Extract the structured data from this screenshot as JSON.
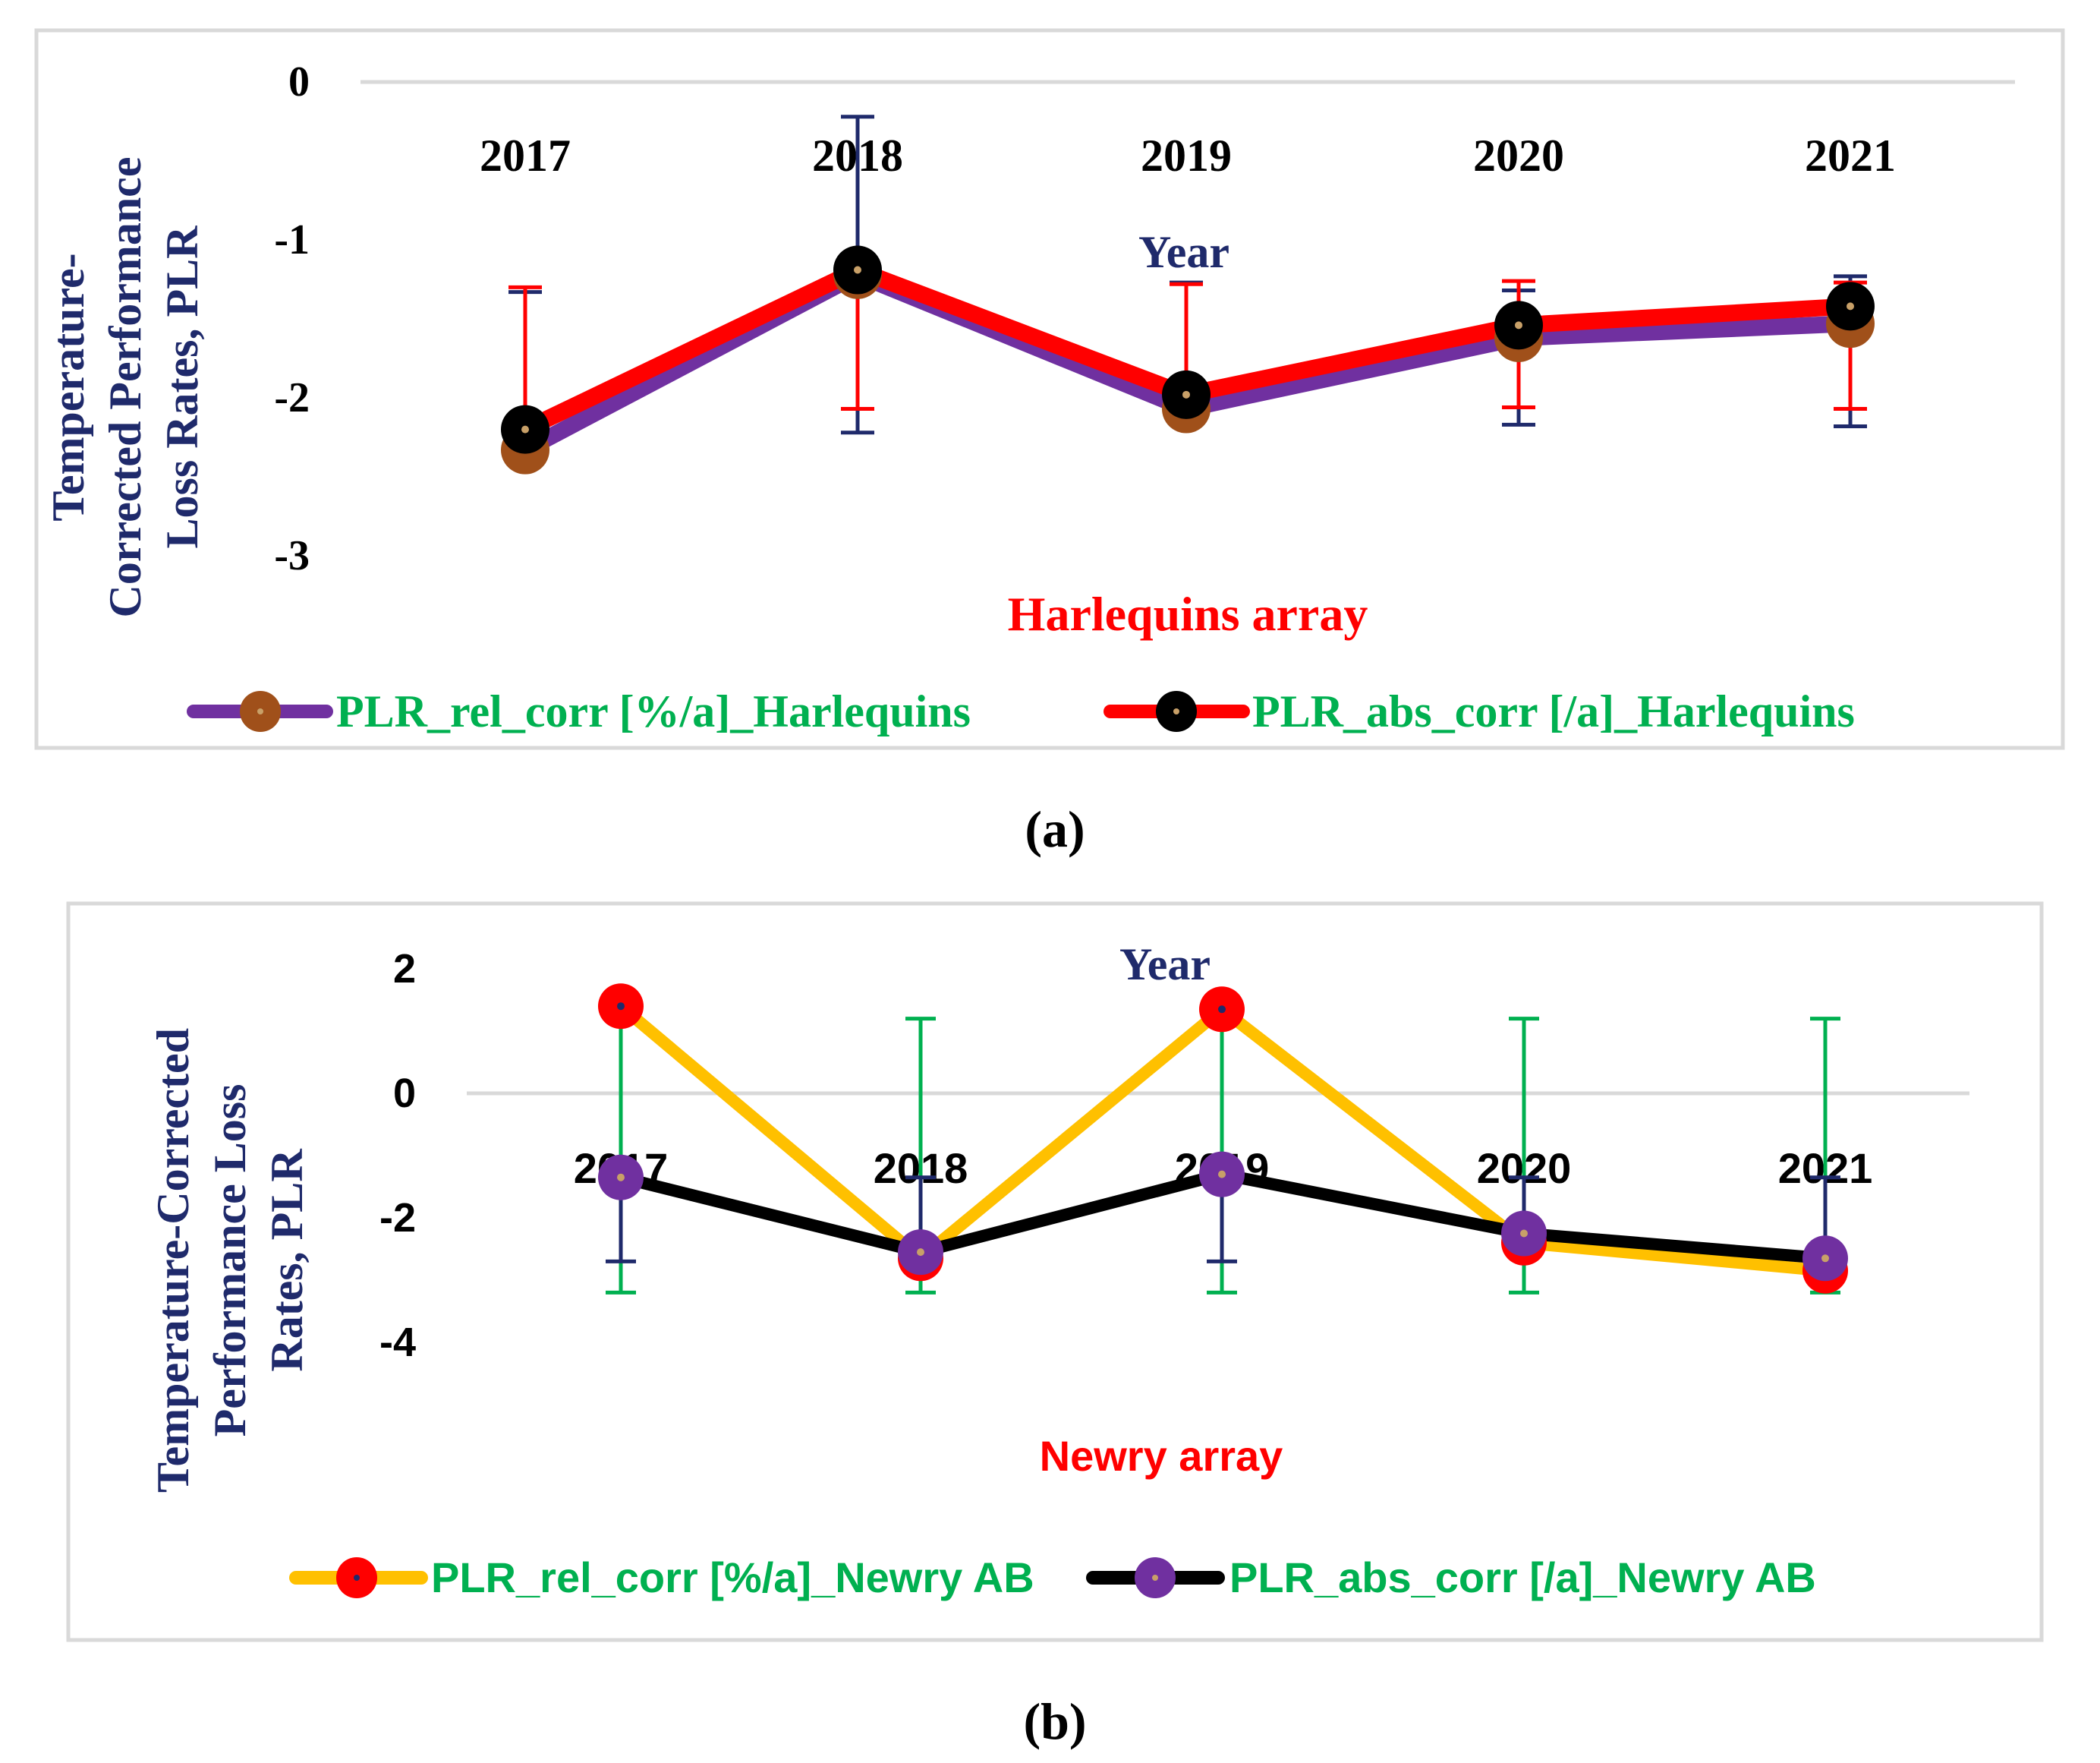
{
  "chart_data": [
    {
      "type": "line",
      "panel_label": "a",
      "title": "Harlequins array",
      "xlabel": "Year",
      "ylabel_lines": [
        "Temperature-",
        "Corrected Performance",
        "Loss Rates, PLR"
      ],
      "categories": [
        "2017",
        "2018",
        "2019",
        "2020",
        "2021"
      ],
      "ylim": [
        -3,
        0
      ],
      "yticks": [
        "0",
        "-1",
        "-2",
        "-3"
      ],
      "ytick_values": [
        0,
        -1,
        -2,
        -3
      ],
      "series": [
        {
          "name": "PLR_rel_corr [%/a]_Harlequins",
          "values": [
            -2.33,
            -1.22,
            -2.07,
            -1.62,
            -1.53
          ],
          "line_color": "#7030a0",
          "marker_color": "#a0501a",
          "marker_dot_color": "#c8a068",
          "error_plus": [
            1.0,
            1.0,
            0.8,
            0.3,
            0.3
          ],
          "error_minus": [
            0.0,
            1.0,
            0.0,
            0.55,
            0.65
          ],
          "error_color": "#1f2a6b"
        },
        {
          "name": "PLR_abs_corr [/a]_Harlequins",
          "values": [
            -2.2,
            -1.19,
            -1.98,
            -1.54,
            -1.42
          ],
          "line_color": "#ff0000",
          "marker_color": "#000000",
          "marker_dot_color": "#c8a068",
          "error_plus": [
            0.9,
            0.0,
            0.7,
            0.28,
            0.15
          ],
          "error_minus": [
            0.0,
            0.88,
            0.0,
            0.52,
            0.65
          ],
          "error_color": "#ff0000"
        }
      ],
      "colors": {
        "axis_title": "#1f2a6b",
        "chart_title": "#ff0000",
        "legend_text": "#00b050",
        "tick_text": "#000000",
        "gridline": "#d9d9d9",
        "border": "#d9d9d9"
      }
    },
    {
      "type": "line",
      "panel_label": "b",
      "title": "Newry array",
      "xlabel": "Year",
      "ylabel_lines": [
        "Temperature-Corrected",
        "Performance Loss",
        "Rates, PLR"
      ],
      "categories": [
        "2017",
        "2018",
        "2019",
        "2020",
        "2021"
      ],
      "ylim": [
        -4,
        2
      ],
      "yticks": [
        "2",
        "0",
        "-2",
        "-4"
      ],
      "ytick_values": [
        2,
        0,
        -2,
        -4
      ],
      "series": [
        {
          "name": "PLR_rel_corr [%/a]_Newry AB",
          "values": [
            1.4,
            -2.65,
            1.35,
            -2.4,
            -2.85
          ],
          "line_color": "#ffc000",
          "marker_color": "#ff0000",
          "marker_dot_color": "#1f2a6b",
          "error_plus": [
            0.0,
            3.85,
            0.0,
            3.6,
            4.05
          ],
          "error_minus": [
            4.6,
            0.55,
            4.55,
            0.8,
            0.35
          ],
          "error_color": "#00b050"
        },
        {
          "name": "PLR_abs_corr [/a]_Newry AB",
          "values": [
            -1.35,
            -2.55,
            -1.3,
            -2.25,
            -2.65
          ],
          "line_color": "#000000",
          "marker_color": "#7030a0",
          "marker_dot_color": "#c8a068",
          "error_plus": [
            0.0,
            1.2,
            0.0,
            0.9,
            1.3
          ],
          "error_minus": [
            1.35,
            0.0,
            1.4,
            0.0,
            0.0
          ],
          "error_color": "#1f2a6b"
        }
      ],
      "colors": {
        "axis_title": "#1f2a6b",
        "chart_title": "#ff0000",
        "legend_text": "#00b050",
        "tick_text": "#000000",
        "gridline": "#d9d9d9",
        "border": "#d9d9d9"
      }
    }
  ],
  "captions": [
    "(a)",
    "(b)"
  ]
}
